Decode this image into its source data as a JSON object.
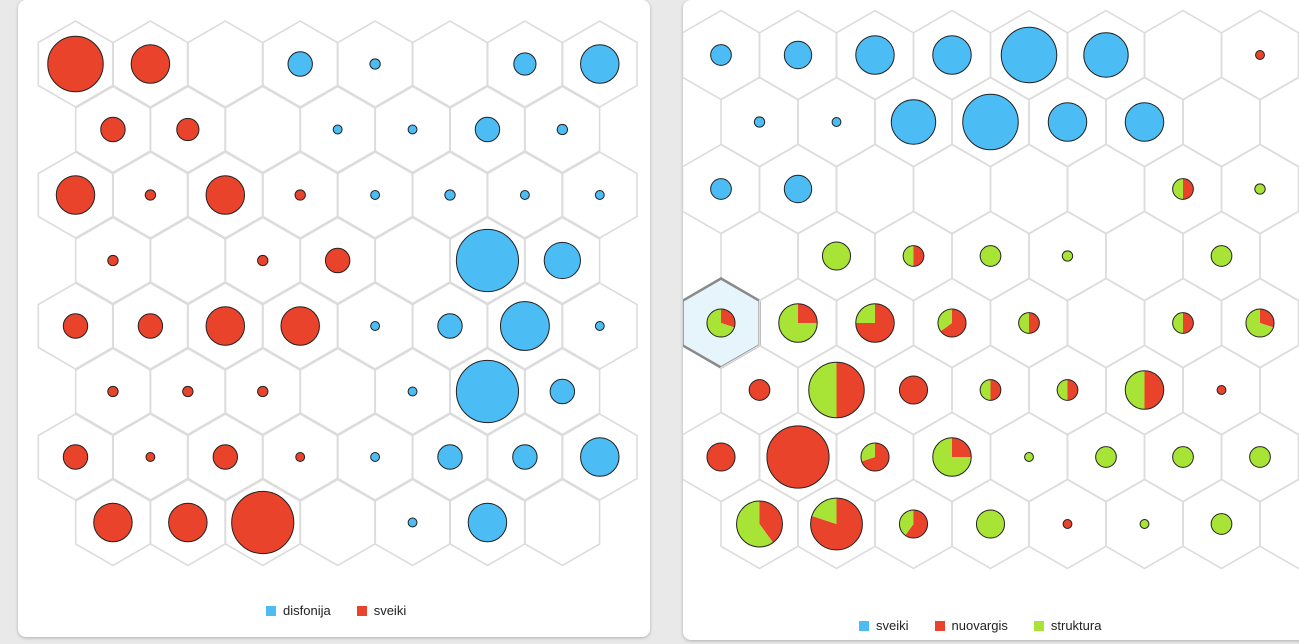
{
  "colors": {
    "blue": "#4cbcf5",
    "red": "#ea432b",
    "green": "#a7e436"
  },
  "chart_data": [
    {
      "type": "som-hexagonal-grid",
      "legend": [
        {
          "label": "disfonija",
          "color": "#4cbcf5"
        },
        {
          "label": "sveiki",
          "color": "#ea432b"
        }
      ],
      "rows": [
        [
          {
            "s": 0.75,
            "f": [
              0,
              1
            ]
          },
          {
            "s": 0.52,
            "f": [
              0,
              1
            ]
          },
          null,
          {
            "s": 0.33,
            "f": [
              1,
              0
            ]
          },
          {
            "s": 0.14,
            "f": [
              1,
              0
            ]
          },
          null,
          {
            "s": 0.3,
            "f": [
              1,
              0
            ]
          },
          {
            "s": 0.52,
            "f": [
              1,
              0
            ]
          }
        ],
        [
          {
            "s": 0.33,
            "f": [
              0,
              1
            ]
          },
          {
            "s": 0.3,
            "f": [
              0,
              1
            ]
          },
          null,
          {
            "s": 0.12,
            "f": [
              1,
              0
            ]
          },
          {
            "s": 0.12,
            "f": [
              1,
              0
            ]
          },
          {
            "s": 0.33,
            "f": [
              1,
              0
            ]
          },
          {
            "s": 0.14,
            "f": [
              1,
              0
            ]
          }
        ],
        [
          {
            "s": 0.52,
            "f": [
              0,
              1
            ]
          },
          {
            "s": 0.14,
            "f": [
              0,
              1
            ]
          },
          {
            "s": 0.52,
            "f": [
              0,
              1
            ]
          },
          {
            "s": 0.14,
            "f": [
              0,
              1
            ]
          },
          {
            "s": 0.12,
            "f": [
              1,
              0
            ]
          },
          {
            "s": 0.14,
            "f": [
              1,
              0
            ]
          },
          {
            "s": 0.12,
            "f": [
              1,
              0
            ]
          },
          {
            "s": 0.12,
            "f": [
              1,
              0
            ]
          }
        ],
        [
          {
            "s": 0.14,
            "f": [
              0,
              1
            ]
          },
          null,
          {
            "s": 0.14,
            "f": [
              0,
              1
            ]
          },
          {
            "s": 0.33,
            "f": [
              0,
              1
            ]
          },
          null,
          {
            "s": 0.84,
            "f": [
              1,
              0
            ]
          },
          {
            "s": 0.49,
            "f": [
              1,
              0
            ]
          }
        ],
        [
          {
            "s": 0.33,
            "f": [
              0,
              1
            ]
          },
          {
            "s": 0.33,
            "f": [
              0,
              1
            ]
          },
          {
            "s": 0.52,
            "f": [
              0,
              1
            ]
          },
          {
            "s": 0.52,
            "f": [
              0,
              1
            ]
          },
          {
            "s": 0.12,
            "f": [
              1,
              0
            ]
          },
          {
            "s": 0.33,
            "f": [
              1,
              0
            ]
          },
          {
            "s": 0.66,
            "f": [
              1,
              0
            ]
          },
          {
            "s": 0.12,
            "f": [
              1,
              0
            ]
          }
        ],
        [
          {
            "s": 0.14,
            "f": [
              0,
              1
            ]
          },
          {
            "s": 0.14,
            "f": [
              0,
              1
            ]
          },
          {
            "s": 0.14,
            "f": [
              0,
              1
            ]
          },
          null,
          {
            "s": 0.12,
            "f": [
              1,
              0
            ]
          },
          {
            "s": 0.84,
            "f": [
              1,
              0
            ]
          },
          {
            "s": 0.33,
            "f": [
              1,
              0
            ]
          }
        ],
        [
          {
            "s": 0.33,
            "f": [
              0,
              1
            ]
          },
          {
            "s": 0.12,
            "f": [
              0,
              1
            ]
          },
          {
            "s": 0.33,
            "f": [
              0,
              1
            ]
          },
          {
            "s": 0.12,
            "f": [
              0,
              1
            ]
          },
          {
            "s": 0.12,
            "f": [
              1,
              0
            ]
          },
          {
            "s": 0.33,
            "f": [
              1,
              0
            ]
          },
          {
            "s": 0.33,
            "f": [
              1,
              0
            ]
          },
          {
            "s": 0.52,
            "f": [
              1,
              0
            ]
          }
        ],
        [
          {
            "s": 0.52,
            "f": [
              0,
              1
            ]
          },
          {
            "s": 0.52,
            "f": [
              0,
              1
            ]
          },
          {
            "s": 0.84,
            "f": [
              0,
              1
            ]
          },
          null,
          {
            "s": 0.12,
            "f": [
              1,
              0
            ]
          },
          {
            "s": 0.52,
            "f": [
              1,
              0
            ]
          },
          null
        ]
      ]
    },
    {
      "type": "som-hexagonal-grid",
      "legend": [
        {
          "label": "sveiki",
          "color": "#4cbcf5"
        },
        {
          "label": "nuovargis",
          "color": "#ea432b"
        },
        {
          "label": "struktura",
          "color": "#a7e436"
        }
      ],
      "selected_cell": {
        "row": 4,
        "col": 0
      },
      "rows": [
        [
          {
            "s": 0.28,
            "f": [
              1,
              0,
              0
            ]
          },
          {
            "s": 0.37,
            "f": [
              1,
              0,
              0
            ]
          },
          {
            "s": 0.52,
            "f": [
              1,
              0,
              0
            ]
          },
          {
            "s": 0.52,
            "f": [
              1,
              0,
              0
            ]
          },
          {
            "s": 0.75,
            "f": [
              1,
              0,
              0
            ]
          },
          {
            "s": 0.6,
            "f": [
              1,
              0,
              0
            ]
          },
          null,
          {
            "s": 0.12,
            "f": [
              0,
              1,
              0
            ]
          }
        ],
        [
          {
            "s": 0.14,
            "f": [
              1,
              0,
              0
            ]
          },
          {
            "s": 0.12,
            "f": [
              1,
              0,
              0
            ]
          },
          {
            "s": 0.6,
            "f": [
              1,
              0,
              0
            ]
          },
          {
            "s": 0.75,
            "f": [
              1,
              0,
              0
            ]
          },
          {
            "s": 0.52,
            "f": [
              1,
              0,
              0
            ]
          },
          {
            "s": 0.52,
            "f": [
              1,
              0,
              0
            ]
          },
          null
        ],
        [
          {
            "s": 0.28,
            "f": [
              1,
              0,
              0
            ]
          },
          {
            "s": 0.37,
            "f": [
              1,
              0,
              0
            ]
          },
          null,
          null,
          null,
          null,
          {
            "s": 0.28,
            "f": [
              0,
              0.5,
              0.5
            ]
          },
          {
            "s": 0.14,
            "f": [
              0,
              0,
              1
            ]
          }
        ],
        [
          null,
          {
            "s": 0.38,
            "f": [
              0,
              0,
              1
            ]
          },
          {
            "s": 0.28,
            "f": [
              0,
              0.5,
              0.5
            ]
          },
          {
            "s": 0.28,
            "f": [
              0,
              0,
              1
            ]
          },
          {
            "s": 0.14,
            "f": [
              0,
              0,
              1
            ]
          },
          null,
          {
            "s": 0.28,
            "f": [
              0,
              0,
              1
            ]
          }
        ],
        [
          {
            "s": 0.38,
            "f": [
              0,
              0.3,
              0.7
            ]
          },
          {
            "s": 0.52,
            "f": [
              0,
              0.25,
              0.75
            ]
          },
          {
            "s": 0.52,
            "f": [
              0,
              0.75,
              0.25
            ]
          },
          {
            "s": 0.38,
            "f": [
              0,
              0.65,
              0.35
            ]
          },
          {
            "s": 0.28,
            "f": [
              0,
              0.5,
              0.5
            ]
          },
          null,
          {
            "s": 0.28,
            "f": [
              0,
              0.5,
              0.5
            ]
          },
          {
            "s": 0.38,
            "f": [
              0,
              0.3,
              0.7
            ]
          }
        ],
        [
          {
            "s": 0.28,
            "f": [
              0,
              1,
              0
            ]
          },
          {
            "s": 0.75,
            "f": [
              0,
              0.5,
              0.5
            ]
          },
          {
            "s": 0.38,
            "f": [
              0,
              1,
              0
            ]
          },
          {
            "s": 0.28,
            "f": [
              0,
              0.5,
              0.5
            ]
          },
          {
            "s": 0.28,
            "f": [
              0,
              0.5,
              0.5
            ]
          },
          {
            "s": 0.52,
            "f": [
              0,
              0.5,
              0.5
            ]
          },
          {
            "s": 0.12,
            "f": [
              0,
              1,
              0
            ]
          }
        ],
        [
          {
            "s": 0.38,
            "f": [
              0,
              1,
              0
            ]
          },
          {
            "s": 0.84,
            "f": [
              0,
              1,
              0
            ]
          },
          {
            "s": 0.38,
            "f": [
              0,
              0.7,
              0.3
            ]
          },
          {
            "s": 0.52,
            "f": [
              0,
              0.25,
              0.75
            ]
          },
          {
            "s": 0.12,
            "f": [
              0,
              0,
              1
            ]
          },
          {
            "s": 0.28,
            "f": [
              0,
              0,
              1
            ]
          },
          {
            "s": 0.28,
            "f": [
              0,
              0,
              1
            ]
          },
          {
            "s": 0.28,
            "f": [
              0,
              0,
              1
            ]
          }
        ],
        [
          {
            "s": 0.62,
            "f": [
              0,
              0.4,
              0.6
            ]
          },
          {
            "s": 0.7,
            "f": [
              0,
              0.8,
              0.2
            ]
          },
          {
            "s": 0.38,
            "f": [
              0,
              0.6,
              0.4
            ]
          },
          {
            "s": 0.38,
            "f": [
              0,
              0,
              1
            ]
          },
          {
            "s": 0.12,
            "f": [
              0,
              1,
              0
            ]
          },
          {
            "s": 0.12,
            "f": [
              0,
              0,
              1
            ]
          },
          {
            "s": 0.28,
            "f": [
              0,
              0,
              1
            ]
          }
        ]
      ]
    }
  ]
}
